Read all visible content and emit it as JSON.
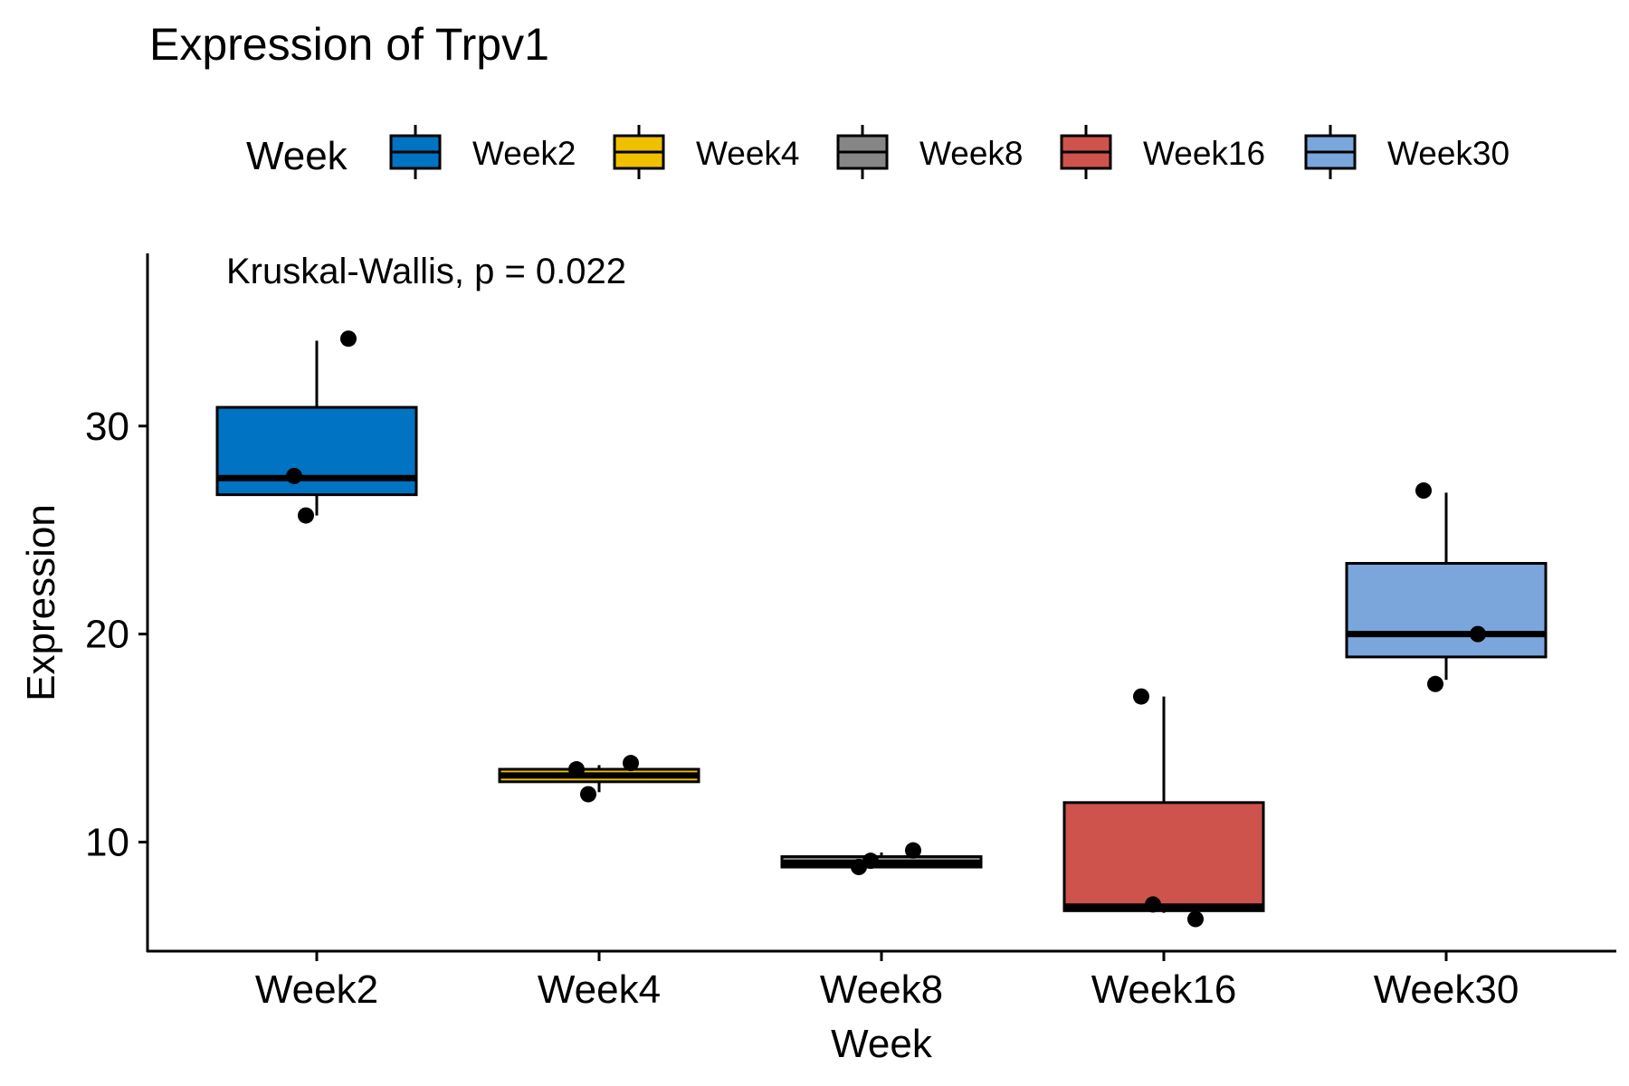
{
  "chart_data": {
    "type": "box",
    "title": "Expression of Trpv1",
    "xlabel": "Week",
    "ylabel": "Expression",
    "annotation": "Kruskal-Wallis, p = 0.022",
    "legend": {
      "title": "Week",
      "position": "top"
    },
    "categories": [
      "Week2",
      "Week4",
      "Week8",
      "Week16",
      "Week30"
    ],
    "yticks": [
      10,
      20,
      30
    ],
    "ylim": [
      4.8,
      38.3
    ],
    "grid": false,
    "colors": [
      "#0073C2",
      "#EFC000",
      "#868686",
      "#CD534C",
      "#7AA6DC"
    ],
    "boxes": [
      {
        "q1": 26.7,
        "median": 27.5,
        "q3": 30.9,
        "whisker_low": 25.7,
        "whisker_high": 34.1
      },
      {
        "q1": 12.9,
        "median": 13.2,
        "q3": 13.5,
        "whisker_low": 12.4,
        "whisker_high": 13.7
      },
      {
        "q1": 8.8,
        "median": 9.0,
        "q3": 9.3,
        "whisker_low": 8.8,
        "whisker_high": 9.5
      },
      {
        "q1": 6.7,
        "median": 6.9,
        "q3": 11.9,
        "whisker_low": 6.6,
        "whisker_high": 17.0
      },
      {
        "q1": 18.9,
        "median": 20.0,
        "q3": 23.4,
        "whisker_low": 17.8,
        "whisker_high": 26.8
      }
    ],
    "points": [
      {
        "category": "Week2",
        "y": 27.6
      },
      {
        "category": "Week2",
        "y": 34.2
      },
      {
        "category": "Week2",
        "y": 25.7
      },
      {
        "category": "Week4",
        "y": 13.5
      },
      {
        "category": "Week4",
        "y": 13.8
      },
      {
        "category": "Week4",
        "y": 12.3
      },
      {
        "category": "Week8",
        "y": 8.8
      },
      {
        "category": "Week8",
        "y": 9.6
      },
      {
        "category": "Week8",
        "y": 9.1
      },
      {
        "category": "Week16",
        "y": 17.0
      },
      {
        "category": "Week16",
        "y": 6.3
      },
      {
        "category": "Week16",
        "y": 7.0
      },
      {
        "category": "Week30",
        "y": 26.9
      },
      {
        "category": "Week30",
        "y": 20.0
      },
      {
        "category": "Week30",
        "y": 17.6
      }
    ]
  }
}
